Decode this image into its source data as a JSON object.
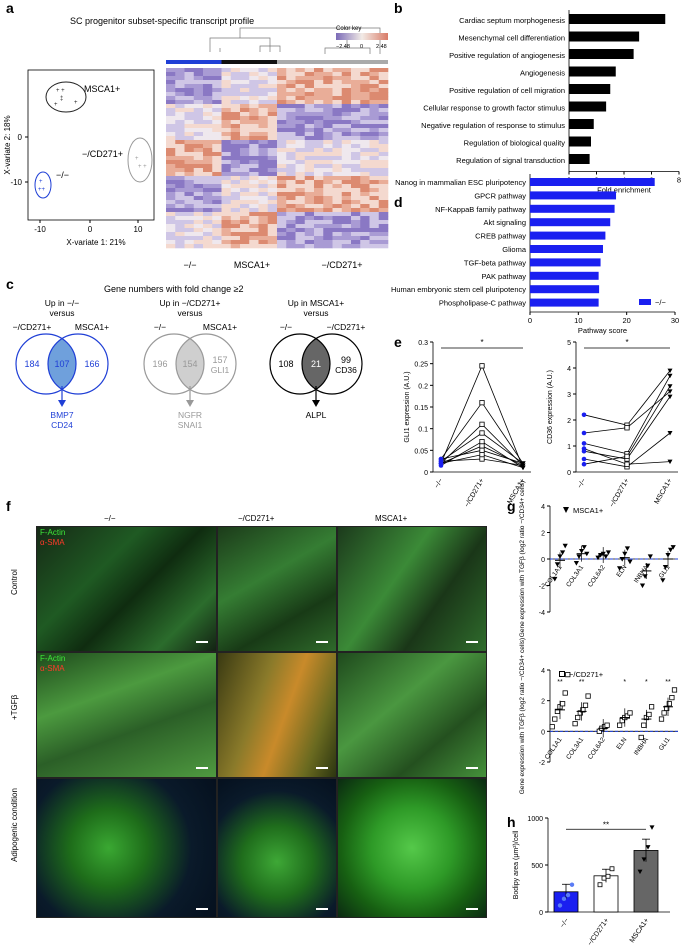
{
  "panels": {
    "a": "a",
    "b": "b",
    "c": "c",
    "d": "d",
    "e": "e",
    "f": "f",
    "g": "g",
    "h": "h"
  },
  "panel_a": {
    "title": "SC progenitor subset-specific transcript profile",
    "pca": {
      "xlabel": "X-variate 1: 21%",
      "ylabel": "X-variate 2: 18%",
      "xticks": [
        "-10",
        "0",
        "10"
      ],
      "yticks": [
        "0",
        "-10"
      ],
      "groups": [
        {
          "label": "MSCA1+",
          "color": "#222222"
        },
        {
          "label": "−/CD271+",
          "color": "#999999"
        },
        {
          "label": "−/−",
          "color": "#1f3fd6"
        }
      ]
    },
    "heatmap": {
      "color_key_title": "Color key",
      "color_key_ticks": [
        "−2.48",
        "0",
        "2.48"
      ],
      "column_labels": [
        "−/−",
        "MSCA1+",
        "−/CD271+"
      ],
      "column_colors": [
        "#1f3fd6",
        "#111111",
        "#aaaaaa"
      ]
    }
  },
  "panel_c": {
    "title": "Gene numbers with fold change ≥2",
    "venns": [
      {
        "header": "Up in −/−",
        "header2": "versus",
        "left": "−/CD271+",
        "right": "MSCA1+",
        "a": "184",
        "ab": "107",
        "b": "166",
        "extra": "",
        "genes": [
          "BMP7",
          "CD24"
        ],
        "color": "#1f3fd6"
      },
      {
        "header": "Up in −/CD271+",
        "header2": "versus",
        "left": "−/−",
        "right": "MSCA1+",
        "a": "196",
        "ab": "154",
        "b": "157",
        "extra": "GLI1",
        "genes": [
          "NGFR",
          "SNAI1"
        ],
        "color": "#999999"
      },
      {
        "header": "Up in MSCA1+",
        "header2": "versus",
        "left": "−/−",
        "right": "−/CD271+",
        "a": "108",
        "ab": "21",
        "b": "99",
        "extra": "CD36",
        "genes": [
          "ALPL"
        ],
        "color": "#000000"
      }
    ]
  },
  "panel_f": {
    "columns": [
      "−/−",
      "−/CD271+",
      "MSCA1+"
    ],
    "rows": [
      "Control",
      "+TGFβ",
      "Adipogenic condition"
    ],
    "stain1": "F-Actin",
    "stain2": "α-SMA"
  },
  "chart_data": [
    {
      "id": "b",
      "type": "bar",
      "categories": [
        "Cardiac septum morphogenesis",
        "Mesenchymal cell differentiation",
        "Positive regulation of angiogenesis",
        "Angiogenesis",
        "Positive regulation of cell migration",
        "Cellular response to growth factor stimulus",
        "Negative regulation of response to stimulus",
        "Regulation of biological quality",
        "Regulation of signal transduction"
      ],
      "values": [
        7.0,
        5.1,
        4.7,
        3.4,
        3.0,
        2.7,
        1.8,
        1.6,
        1.5
      ],
      "xlabel": "Fold enrichment",
      "ylabel": "",
      "xlim": [
        0,
        8
      ],
      "xticks": [
        0,
        2,
        4,
        6,
        8
      ],
      "color": "#000000",
      "orientation": "horizontal"
    },
    {
      "id": "d",
      "type": "bar",
      "categories": [
        "Nanog in mammalian ESC pluripotency",
        "GPCR pathway",
        "NF-KappaB family pathway",
        "Akt signaling",
        "CREB pathway",
        "Glioma",
        "TGF-beta pathway",
        "PAK pathway",
        "Human embryonic stem cell pluripotency",
        "Phospholipase-C pathway"
      ],
      "values": [
        25.8,
        17.8,
        17.5,
        16.6,
        15.6,
        15.1,
        14.6,
        14.2,
        14.3,
        14.2
      ],
      "xlabel": "Pathway score",
      "ylabel": "",
      "xlim": [
        0,
        30
      ],
      "xticks": [
        0,
        10,
        20,
        30
      ],
      "legend": "−/−",
      "legend_position": "bottom-right",
      "color": "#1a1ff0",
      "orientation": "horizontal"
    },
    {
      "id": "e1",
      "type": "line",
      "categories": [
        "−/−",
        "−/CD271+",
        "MSCA1+"
      ],
      "ylabel": "GLI1 expression (A.U.)",
      "ylim": [
        0,
        0.3
      ],
      "yticks": [
        0,
        0.05,
        0.1,
        0.15,
        0.2,
        0.25,
        0.3
      ],
      "significance": "*",
      "series": [
        {
          "values": [
            0.02,
            0.245,
            0.01
          ]
        },
        {
          "values": [
            0.03,
            0.16,
            0.02
          ]
        },
        {
          "values": [
            0.02,
            0.11,
            0.015
          ]
        },
        {
          "values": [
            0.025,
            0.09,
            0.02
          ]
        },
        {
          "values": [
            0.015,
            0.07,
            0.01
          ]
        },
        {
          "values": [
            0.02,
            0.06,
            0.015
          ]
        },
        {
          "values": [
            0.03,
            0.05,
            0.02
          ]
        },
        {
          "values": [
            0.02,
            0.04,
            0.01
          ]
        },
        {
          "values": [
            0.025,
            0.03,
            0.015
          ]
        }
      ]
    },
    {
      "id": "e2",
      "type": "line",
      "categories": [
        "−/−",
        "−/CD271+",
        "MSCA1+"
      ],
      "ylabel": "CD36 expression (A.U.)",
      "ylim": [
        0,
        5
      ],
      "yticks": [
        0,
        1,
        2,
        3,
        4,
        5
      ],
      "significance": "*",
      "series": [
        {
          "values": [
            2.2,
            1.8,
            3.9
          ]
        },
        {
          "values": [
            1.5,
            1.7,
            3.1
          ]
        },
        {
          "values": [
            1.1,
            0.7,
            3.7
          ]
        },
        {
          "values": [
            0.8,
            0.5,
            2.9
          ]
        },
        {
          "values": [
            0.5,
            0.2,
            1.5
          ]
        },
        {
          "values": [
            0.3,
            0.6,
            3.3
          ]
        },
        {
          "values": [
            0.9,
            0.3,
            0.4
          ]
        }
      ]
    },
    {
      "id": "g1",
      "type": "scatter",
      "categories": [
        "COL1A1",
        "COL3A1",
        "COL6A2",
        "ELN",
        "INBHA",
        "GLI1"
      ],
      "ylabel": "Gene expression with TGFβ (log2 ratio −/CD34+ cells)",
      "legend": "MSCA1+",
      "ylim": [
        -4,
        4
      ],
      "yticks": [
        -4,
        -2,
        0,
        2,
        4
      ],
      "significance": [
        "",
        "",
        "",
        "",
        "",
        ""
      ],
      "series": [
        {
          "name": "MSCA1+",
          "points": [
            [
              -1.5,
              -0.4,
              0.2,
              0.5,
              1.0
            ],
            [
              -0.3,
              0.2,
              0.6,
              0.9,
              0.4
            ],
            [
              0.1,
              0.3,
              0.4,
              0.2,
              0.5
            ],
            [
              -0.7,
              0.0,
              0.4,
              0.8,
              -0.2
            ],
            [
              -2.0,
              -1.3,
              -0.5,
              0.2
            ],
            [
              -1.6,
              -0.6,
              0.3,
              0.7,
              0.9
            ]
          ],
          "means": [
            -0.1,
            0.4,
            0.3,
            0.1,
            -0.9,
            0.0
          ]
        }
      ]
    },
    {
      "id": "g2",
      "type": "scatter",
      "categories": [
        "COL1A1",
        "COL3A1",
        "COL6A2",
        "ELN",
        "INBHA",
        "GLI1"
      ],
      "ylabel": "Gene expression with TGFβ (log2 ratio −/CD34+ cells)",
      "legend": "−/CD271+",
      "ylim": [
        -2,
        4
      ],
      "yticks": [
        -2,
        0,
        2,
        4
      ],
      "significance": [
        "**",
        "**",
        "",
        "*",
        "*",
        "**"
      ],
      "series": [
        {
          "name": "−/CD271+",
          "points": [
            [
              0.3,
              0.8,
              1.3,
              1.6,
              1.8,
              2.5,
              3.7
            ],
            [
              0.5,
              0.9,
              1.2,
              1.4,
              1.7,
              2.3
            ],
            [
              0.0,
              0.2,
              0.3,
              0.4
            ],
            [
              0.4,
              0.7,
              0.9,
              1.0,
              1.2
            ],
            [
              -0.4,
              0.4,
              0.9,
              1.1,
              1.6
            ],
            [
              0.8,
              1.2,
              1.5,
              1.8,
              2.2,
              2.7
            ]
          ],
          "means": [
            1.4,
            1.3,
            0.2,
            0.9,
            0.8,
            1.6
          ]
        }
      ]
    },
    {
      "id": "h",
      "type": "bar",
      "categories": [
        "−/−",
        "−/CD271+",
        "MSCA1+"
      ],
      "values": [
        215,
        385,
        655
      ],
      "errors": [
        80,
        70,
        120
      ],
      "points": [
        [
          70,
          140,
          180,
          290
        ],
        [
          290,
          360,
          380,
          460
        ],
        [
          430,
          560,
          690,
          900
        ]
      ],
      "ylabel": "Bodipy area (μm²)/cell",
      "ylim": [
        0,
        1000
      ],
      "yticks": [
        0,
        500,
        1000
      ],
      "significance": "**",
      "colors": [
        "#1a1ff0",
        "#ffffff",
        "#666666"
      ]
    }
  ]
}
